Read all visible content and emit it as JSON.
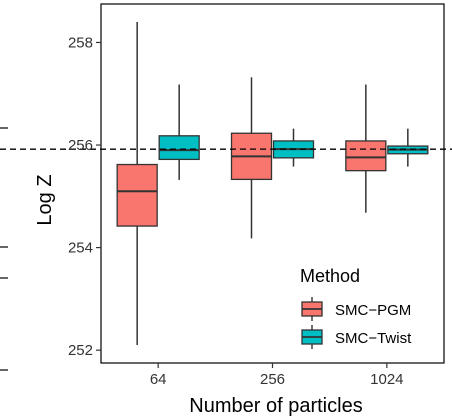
{
  "chart_data": {
    "type": "boxplot",
    "xlabel": "Number of particles",
    "ylabel": "Log Z",
    "categories": [
      "64",
      "256",
      "1024"
    ],
    "ylim": [
      251.75,
      258.75
    ],
    "yticks": [
      252,
      254,
      256,
      258
    ],
    "reference_line": {
      "y": 255.92,
      "style": "dashed"
    },
    "legend": {
      "title": "Method",
      "position": "bottom-right-inside"
    },
    "grid": false,
    "series": [
      {
        "name": "SMC−PGM",
        "color": "#F8766D",
        "boxes": [
          {
            "category": "64",
            "min": 252.1,
            "q1": 254.42,
            "median": 255.1,
            "q3": 255.62,
            "max": 258.4
          },
          {
            "category": "256",
            "min": 254.18,
            "q1": 255.33,
            "median": 255.78,
            "q3": 256.23,
            "max": 257.32
          },
          {
            "category": "1024",
            "min": 254.68,
            "q1": 255.5,
            "median": 255.76,
            "q3": 256.08,
            "max": 257.18
          }
        ]
      },
      {
        "name": "SMC−Twist",
        "color": "#00BFC4",
        "boxes": [
          {
            "category": "64",
            "min": 255.32,
            "q1": 255.72,
            "median": 255.9,
            "q3": 256.18,
            "max": 257.18
          },
          {
            "category": "256",
            "min": 255.58,
            "q1": 255.75,
            "median": 255.92,
            "q3": 256.08,
            "max": 256.32
          },
          {
            "category": "1024",
            "min": 255.58,
            "q1": 255.83,
            "median": 255.91,
            "q3": 255.98,
            "max": 256.32
          }
        ]
      }
    ]
  }
}
